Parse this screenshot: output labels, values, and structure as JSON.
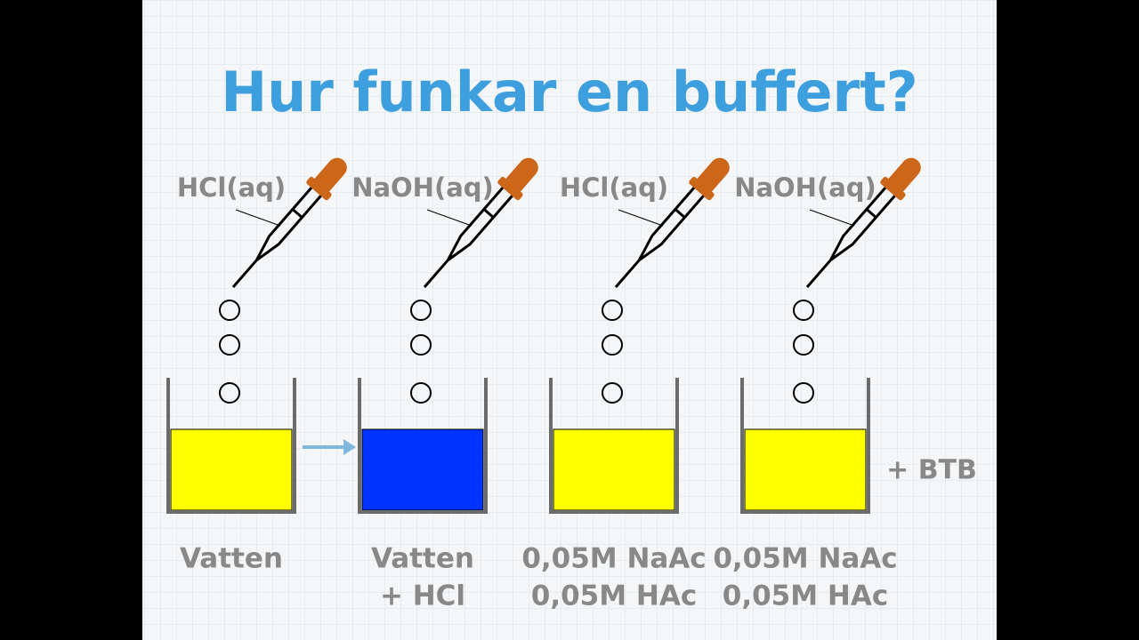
{
  "title": "Hur funkar en buffert?",
  "beakers": [
    {
      "reagent": "HCl(aq)",
      "label": [
        "Vatten"
      ]
    },
    {
      "reagent": "NaOH(aq)",
      "label": [
        "Vatten",
        "+ HCl"
      ]
    },
    {
      "reagent": "HCl(aq)",
      "label": [
        "0,05M NaAc",
        "0,05M HAc"
      ]
    },
    {
      "reagent": "NaOH(aq)",
      "label": [
        "0,05M NaAc",
        "0,05M HAc"
      ]
    }
  ],
  "note": "+ BTB"
}
